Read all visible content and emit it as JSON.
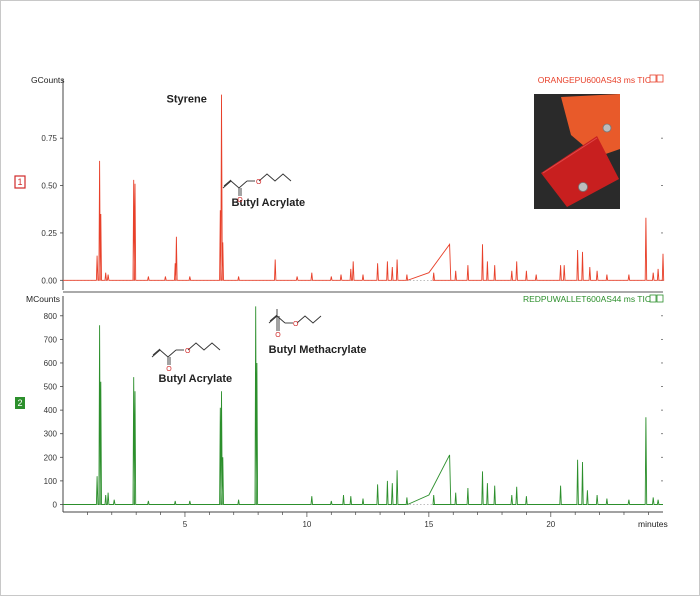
{
  "chart_data": [
    {
      "type": "line",
      "panel_number": "1",
      "trace_title": "ORANGEPU600AS43 ms TIC",
      "ylabel": "GCounts",
      "yticks": [
        "0.00",
        "0.25",
        "0.50",
        "0.75"
      ],
      "ylim": [
        -0.03,
        1.02
      ],
      "xlim": [
        0,
        24.6
      ],
      "color": "#e8402a",
      "annotations": [
        {
          "text": "Styrene",
          "x": 6.5,
          "y": 0.98
        },
        {
          "text": "Butyl Acrylate",
          "x": 6.5,
          "y": 0.36
        }
      ],
      "peaks": [
        {
          "x": 1.4,
          "y": 0.13
        },
        {
          "x": 1.5,
          "y": 0.63
        },
        {
          "x": 1.55,
          "y": 0.35
        },
        {
          "x": 1.75,
          "y": 0.04
        },
        {
          "x": 1.85,
          "y": 0.03
        },
        {
          "x": 2.9,
          "y": 0.53
        },
        {
          "x": 2.95,
          "y": 0.51
        },
        {
          "x": 3.5,
          "y": 0.02
        },
        {
          "x": 4.2,
          "y": 0.02
        },
        {
          "x": 4.6,
          "y": 0.09
        },
        {
          "x": 4.65,
          "y": 0.23
        },
        {
          "x": 5.2,
          "y": 0.02
        },
        {
          "x": 6.45,
          "y": 0.37
        },
        {
          "x": 6.5,
          "y": 0.98
        },
        {
          "x": 6.55,
          "y": 0.2
        },
        {
          "x": 7.2,
          "y": 0.02
        },
        {
          "x": 8.7,
          "y": 0.11
        },
        {
          "x": 9.6,
          "y": 0.02
        },
        {
          "x": 10.2,
          "y": 0.04
        },
        {
          "x": 11.0,
          "y": 0.02
        },
        {
          "x": 11.4,
          "y": 0.03
        },
        {
          "x": 11.8,
          "y": 0.06
        },
        {
          "x": 11.9,
          "y": 0.1
        },
        {
          "x": 12.3,
          "y": 0.03
        },
        {
          "x": 12.9,
          "y": 0.09
        },
        {
          "x": 13.3,
          "y": 0.1
        },
        {
          "x": 13.5,
          "y": 0.07
        },
        {
          "x": 13.7,
          "y": 0.11
        },
        {
          "x": 14.1,
          "y": 0.03
        },
        {
          "x": 15.2,
          "y": 0.04
        },
        {
          "x": 16.1,
          "y": 0.05
        },
        {
          "x": 16.6,
          "y": 0.08
        },
        {
          "x": 17.2,
          "y": 0.19
        },
        {
          "x": 17.4,
          "y": 0.1
        },
        {
          "x": 17.7,
          "y": 0.08
        },
        {
          "x": 18.4,
          "y": 0.05
        },
        {
          "x": 18.6,
          "y": 0.1
        },
        {
          "x": 19.0,
          "y": 0.05
        },
        {
          "x": 19.4,
          "y": 0.03
        },
        {
          "x": 20.4,
          "y": 0.08
        },
        {
          "x": 20.55,
          "y": 0.08
        },
        {
          "x": 21.1,
          "y": 0.16
        },
        {
          "x": 21.3,
          "y": 0.15
        },
        {
          "x": 21.6,
          "y": 0.07
        },
        {
          "x": 21.9,
          "y": 0.05
        },
        {
          "x": 22.3,
          "y": 0.03
        },
        {
          "x": 23.2,
          "y": 0.03
        },
        {
          "x": 23.9,
          "y": 0.33
        },
        {
          "x": 24.2,
          "y": 0.04
        },
        {
          "x": 24.4,
          "y": 0.06
        },
        {
          "x": 24.6,
          "y": 0.14
        }
      ],
      "hump": {
        "x_start": 15.0,
        "x_end": 15.85,
        "y_start": 0.04,
        "y_end": 0.19
      }
    },
    {
      "type": "line",
      "panel_number": "2",
      "trace_title": "REDPUWALLET600AS44 ms TIC",
      "ylabel": "MCounts",
      "yticks": [
        "0",
        "100",
        "200",
        "300",
        "400",
        "500",
        "600",
        "700",
        "800"
      ],
      "ylim": [
        -15,
        850
      ],
      "xlim": [
        0,
        24.6
      ],
      "xticks": [
        "5",
        "10",
        "15",
        "20"
      ],
      "xlabel": "minutes",
      "color": "#2c8f2c",
      "annotations": [
        {
          "text": "Butyl Acrylate",
          "x": 6.5,
          "y": 480
        },
        {
          "text": "Butyl Methacrylate",
          "x": 7.9,
          "y": 840
        }
      ],
      "peaks": [
        {
          "x": 1.4,
          "y": 120
        },
        {
          "x": 1.5,
          "y": 760
        },
        {
          "x": 1.55,
          "y": 520
        },
        {
          "x": 1.75,
          "y": 40
        },
        {
          "x": 1.85,
          "y": 50
        },
        {
          "x": 2.1,
          "y": 20
        },
        {
          "x": 2.9,
          "y": 540
        },
        {
          "x": 2.95,
          "y": 480
        },
        {
          "x": 3.5,
          "y": 15
        },
        {
          "x": 4.6,
          "y": 15
        },
        {
          "x": 5.2,
          "y": 15
        },
        {
          "x": 6.45,
          "y": 410
        },
        {
          "x": 6.5,
          "y": 480
        },
        {
          "x": 6.55,
          "y": 200
        },
        {
          "x": 7.2,
          "y": 20
        },
        {
          "x": 7.9,
          "y": 840
        },
        {
          "x": 7.95,
          "y": 600
        },
        {
          "x": 10.2,
          "y": 35
        },
        {
          "x": 11.0,
          "y": 15
        },
        {
          "x": 11.5,
          "y": 40
        },
        {
          "x": 11.8,
          "y": 35
        },
        {
          "x": 12.3,
          "y": 25
        },
        {
          "x": 12.9,
          "y": 85
        },
        {
          "x": 13.3,
          "y": 100
        },
        {
          "x": 13.5,
          "y": 90
        },
        {
          "x": 13.7,
          "y": 145
        },
        {
          "x": 14.1,
          "y": 30
        },
        {
          "x": 15.2,
          "y": 40
        },
        {
          "x": 16.1,
          "y": 50
        },
        {
          "x": 16.6,
          "y": 70
        },
        {
          "x": 17.2,
          "y": 140
        },
        {
          "x": 17.4,
          "y": 90
        },
        {
          "x": 17.7,
          "y": 80
        },
        {
          "x": 18.4,
          "y": 40
        },
        {
          "x": 18.6,
          "y": 75
        },
        {
          "x": 19.0,
          "y": 35
        },
        {
          "x": 20.4,
          "y": 80
        },
        {
          "x": 21.1,
          "y": 190
        },
        {
          "x": 21.3,
          "y": 180
        },
        {
          "x": 21.5,
          "y": 60
        },
        {
          "x": 21.9,
          "y": 40
        },
        {
          "x": 22.3,
          "y": 25
        },
        {
          "x": 23.2,
          "y": 20
        },
        {
          "x": 23.9,
          "y": 370
        },
        {
          "x": 24.2,
          "y": 30
        },
        {
          "x": 24.4,
          "y": 20
        }
      ],
      "hump": {
        "x_start": 15.0,
        "x_end": 15.85,
        "y_start": 40,
        "y_end": 210
      }
    }
  ],
  "photo": {
    "description_icon": "wallet-photo",
    "wallet_orange_color": "#e85a2a",
    "wallet_red_color": "#c81f1f",
    "background_color": "#2a2a2a"
  },
  "structures": {
    "butyl_acrylate_icon": "butyl-acrylate-structure-icon",
    "butyl_methacrylate_icon": "butyl-methacrylate-structure-icon"
  }
}
